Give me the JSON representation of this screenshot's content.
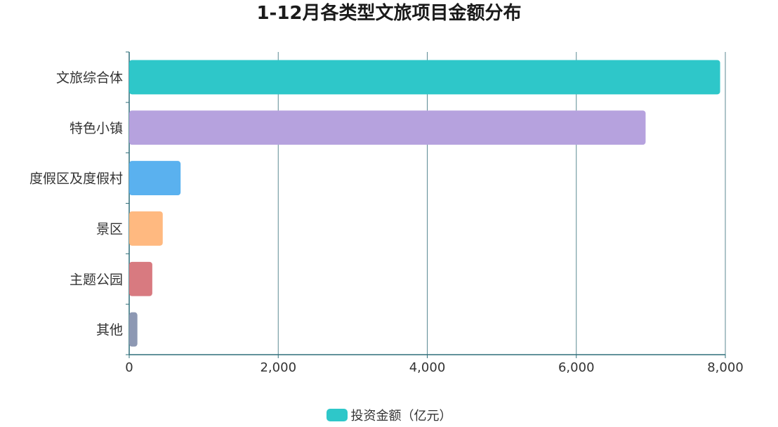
{
  "title": "1-12月各类型文旅项目金额分布",
  "chart_data": {
    "type": "bar",
    "orientation": "horizontal",
    "title": "1-12月各类型文旅项目金额分布",
    "categories": [
      "文旅综合体",
      "特色小镇",
      "度假区及度假村",
      "景区",
      "主题公园",
      "其他"
    ],
    "series": [
      {
        "name": "投资金额（亿元）",
        "values": [
          7930,
          6930,
          690,
          450,
          310,
          110
        ],
        "colors": [
          "#2ec7c9",
          "#b6a2de",
          "#5ab1ef",
          "#ffb980",
          "#d87a80",
          "#8d98b3"
        ]
      }
    ],
    "xlim": [
      0,
      8000
    ],
    "x_ticks": [
      0,
      2000,
      4000,
      6000,
      8000
    ],
    "x_tick_labels": [
      "0",
      "2,000",
      "4,000",
      "6,000",
      "8,000"
    ],
    "grid": true,
    "legend_position": "bottom-center"
  },
  "legend": {
    "label": "投资金额（亿元）",
    "color": "#2ec7c9"
  }
}
